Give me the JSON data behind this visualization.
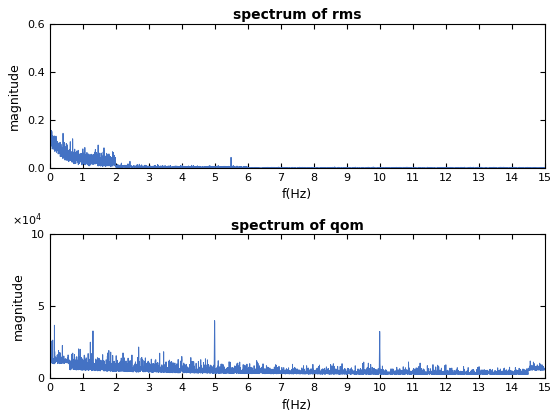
{
  "title_rms": "spectrum of rms",
  "title_qom": "spectrum of qom",
  "xlabel": "f(Hz)",
  "ylabel": "magnitude",
  "rms_xlim": [
    0,
    15
  ],
  "rms_ylim": [
    0,
    0.6
  ],
  "qom_xlim": [
    0,
    15
  ],
  "qom_ylim": [
    0,
    100000
  ],
  "line_color": "#4472C4",
  "line_width": 0.7,
  "rms_yticks": [
    0,
    0.2,
    0.4,
    0.6
  ],
  "qom_yticks": [
    0,
    50000,
    100000
  ],
  "xticks": [
    0,
    1,
    2,
    3,
    4,
    5,
    6,
    7,
    8,
    9,
    10,
    11,
    12,
    13,
    14,
    15
  ],
  "bg_color": "#ffffff",
  "fig_width": 5.6,
  "fig_height": 4.2,
  "dpi": 100
}
